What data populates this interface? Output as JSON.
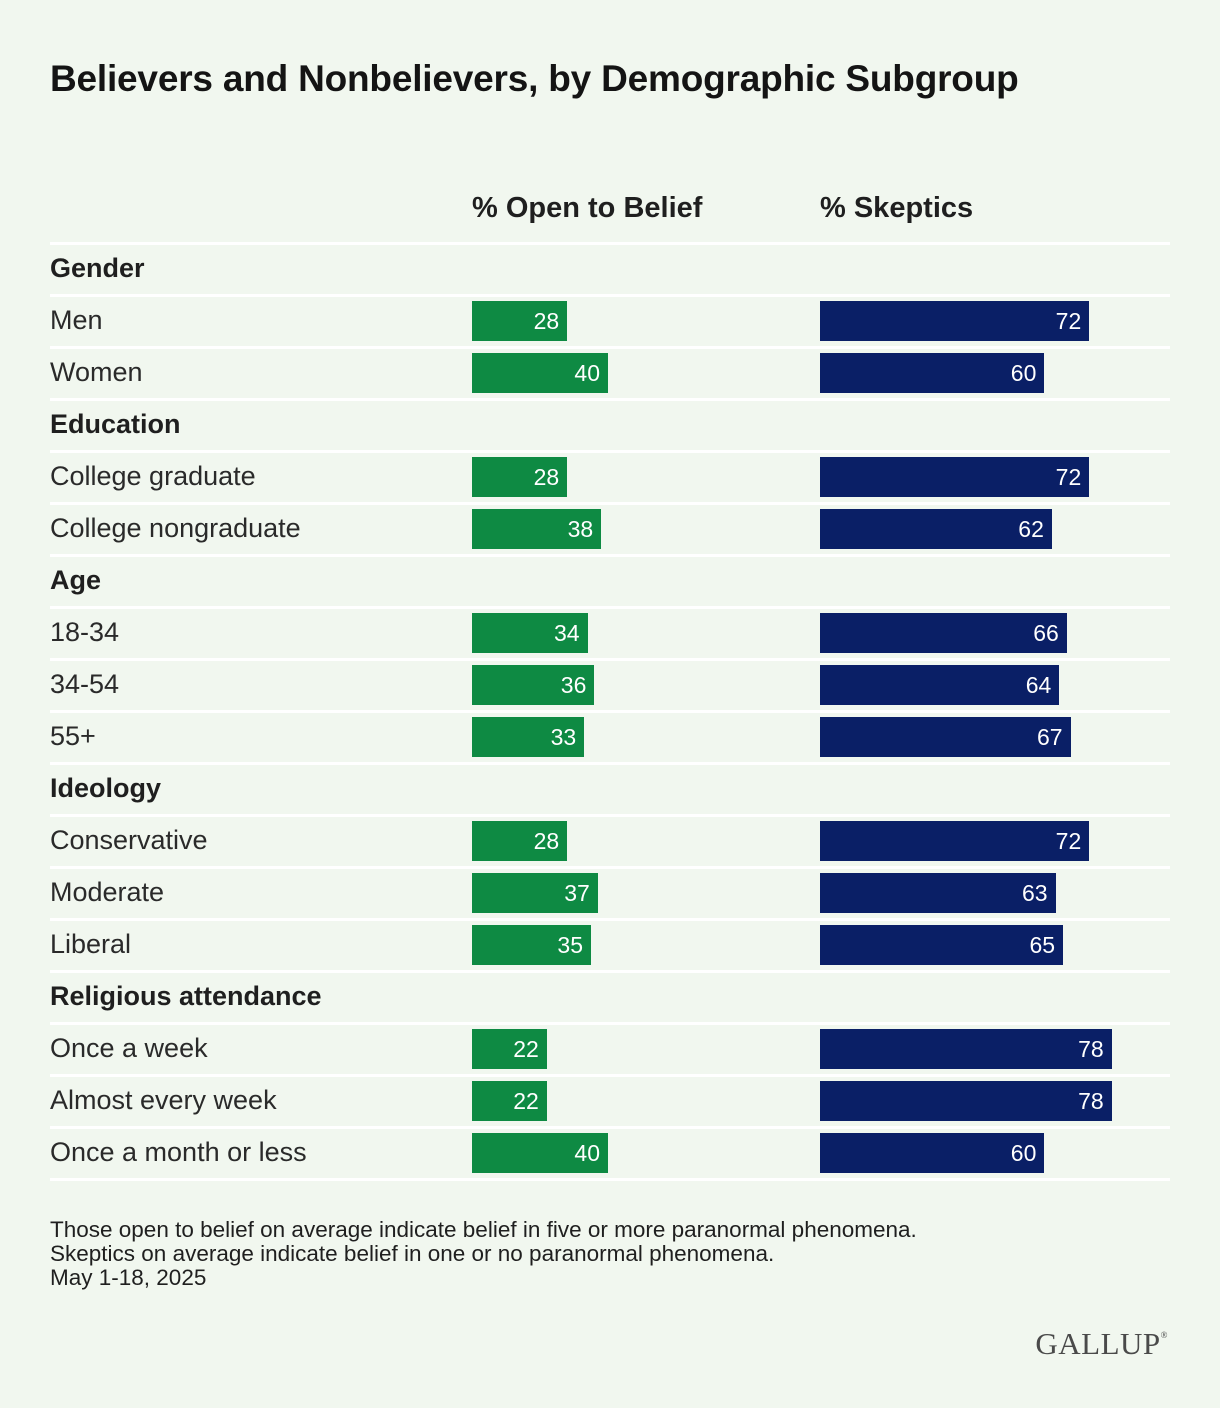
{
  "chart_data": {
    "type": "bar",
    "title": "Believers and Nonbelievers, by Demographic Subgroup",
    "series_labels": {
      "open": "% Open to Belief",
      "skeptics": "% Skeptics"
    },
    "colors": {
      "open": "#0e8a43",
      "skeptics": "#0a1f66",
      "background": "#f1f7ef"
    },
    "xlim": [
      0,
      100
    ],
    "groups": [
      {
        "name": "Gender",
        "rows": [
          {
            "label": "Men",
            "open": 28,
            "skeptics": 72
          },
          {
            "label": "Women",
            "open": 40,
            "skeptics": 60
          }
        ]
      },
      {
        "name": "Education",
        "rows": [
          {
            "label": "College graduate",
            "open": 28,
            "skeptics": 72
          },
          {
            "label": "College nongraduate",
            "open": 38,
            "skeptics": 62
          }
        ]
      },
      {
        "name": "Age",
        "rows": [
          {
            "label": "18-34",
            "open": 34,
            "skeptics": 66
          },
          {
            "label": "34-54",
            "open": 36,
            "skeptics": 64
          },
          {
            "label": "55+",
            "open": 33,
            "skeptics": 67
          }
        ]
      },
      {
        "name": "Ideology",
        "rows": [
          {
            "label": "Conservative",
            "open": 28,
            "skeptics": 72
          },
          {
            "label": "Moderate",
            "open": 37,
            "skeptics": 63
          },
          {
            "label": "Liberal",
            "open": 35,
            "skeptics": 65
          }
        ]
      },
      {
        "name": "Religious attendance",
        "rows": [
          {
            "label": "Once a week",
            "open": 22,
            "skeptics": 78
          },
          {
            "label": "Almost every week",
            "open": 22,
            "skeptics": 78
          },
          {
            "label": "Once a month or less",
            "open": 40,
            "skeptics": 60
          }
        ]
      }
    ]
  },
  "footnotes": {
    "line1": "Those open to belief on average indicate belief in five or more paranormal phenomena.",
    "line2": "Skeptics on average indicate belief in one or no paranormal phenomena.",
    "date": "May 1-18, 2025"
  },
  "brand": {
    "logo_text": "GALLUP",
    "logo_mark": "®"
  }
}
